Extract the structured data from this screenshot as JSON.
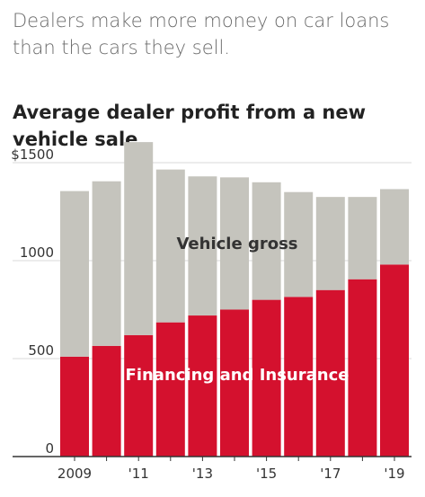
{
  "subtitle": "Dealers make more money on car loans than the cars they sell.",
  "chart_data": {
    "type": "bar",
    "stacked": true,
    "title": "Average dealer profit from a new vehicle sale",
    "categories": [
      "2009",
      "2010",
      "2011",
      "2012",
      "2013",
      "2014",
      "2015",
      "2016",
      "2017",
      "2018",
      "2019"
    ],
    "x_tick_labels": [
      "2009",
      "",
      "'11",
      "",
      "'13",
      "",
      "'15",
      "",
      "'17",
      "",
      "'19"
    ],
    "series": [
      {
        "name": "Financing and Insurance",
        "color": "#d4112e",
        "values": [
          510,
          565,
          620,
          685,
          720,
          750,
          800,
          815,
          850,
          905,
          980
        ]
      },
      {
        "name": "Vehicle gross",
        "color": "#c5c4bd",
        "values": [
          845,
          840,
          985,
          780,
          710,
          675,
          600,
          535,
          475,
          420,
          385
        ]
      }
    ],
    "y_tick_labels": [
      "$1500",
      "1000",
      "500",
      "0"
    ],
    "y_ticks": [
      1500,
      1000,
      500,
      0
    ],
    "ylim": [
      0,
      1500
    ],
    "grid": true
  }
}
